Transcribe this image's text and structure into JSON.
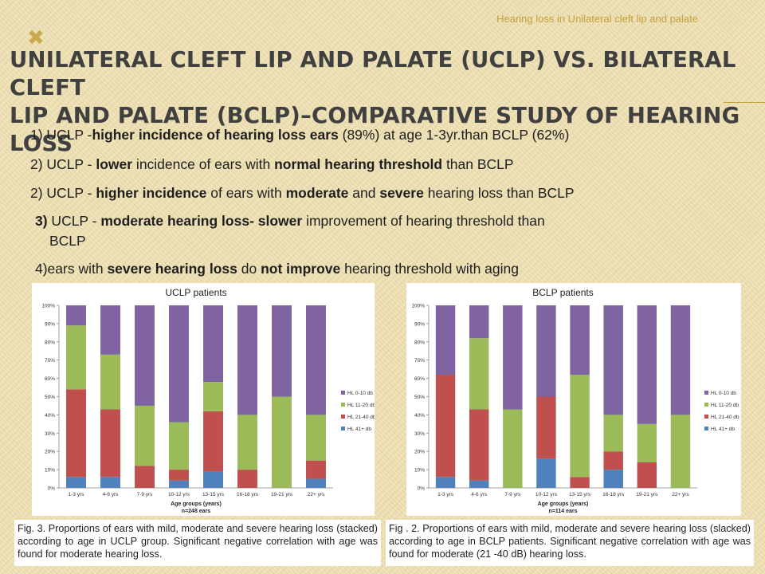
{
  "header_note": "Hearing loss in Unilateral cleft lip and palate",
  "deco_icon": "x-mark-icon",
  "title_line1": "Unilateral cleft lip and palate (UCLP)  vs. Bilateral cleft",
  "title_line2": "lip and palate (BCLP)–comparative study of hearing loss",
  "points": [
    {
      "segments": [
        {
          "t": "1) UCLP -"
        },
        {
          "t": "higher incidence of  hearing loss ears",
          "b": true
        },
        {
          "t": " (89%) at age 1-3yr.than BCLP (62%)"
        }
      ]
    },
    {
      "segments": [
        {
          "t": "2) UCLP - "
        },
        {
          "t": "lower",
          "b": true
        },
        {
          "t": " incidence of ears with "
        },
        {
          "t": "normal hearing threshold",
          "b": true
        },
        {
          "t": "  than BCLP"
        }
      ]
    },
    {
      "segments": [
        {
          "t": "2) UCLP - "
        },
        {
          "t": "higher incidence",
          "b": true
        },
        {
          "t": " of ears with "
        },
        {
          "t": "moderate",
          "b": true
        },
        {
          "t": " and "
        },
        {
          "t": "severe",
          "b": true
        },
        {
          "t": " hearing loss than BCLP"
        }
      ]
    },
    {
      "segments": [
        {
          "t": "3)",
          "b": true
        },
        {
          "t": " UCLP - "
        },
        {
          "t": "moderate hearing loss- slower",
          "b": true
        },
        {
          "t": "  improvement of hearing threshold than"
        }
      ]
    },
    {
      "segments": [
        {
          "t": "BCLP"
        }
      ]
    },
    {
      "segments": [
        {
          "t": "4)ears with "
        },
        {
          "t": "severe hearing loss",
          "b": true
        },
        {
          "t": " do "
        },
        {
          "t": "not improve",
          "b": true
        },
        {
          "t": " hearing threshold with aging"
        }
      ]
    }
  ],
  "chart_data": [
    {
      "type": "bar",
      "stacked": true,
      "title": "UCLP patients",
      "xlabel": "Age groups (years)",
      "xlabel_note": "n=248 ears",
      "ylim": [
        0,
        100
      ],
      "y_ticks": [
        "0%",
        "10%",
        "20%",
        "30%",
        "40%",
        "50%",
        "60%",
        "70%",
        "80%",
        "90%",
        "100%"
      ],
      "categories": [
        "1-3 yrs",
        "4-6 yrs",
        "7-9 yrs",
        "10-12 yrs",
        "13-15 yrs",
        "16-18 yrs",
        "19-21 yrs",
        "22+ yrs"
      ],
      "legend_position": "right",
      "series": [
        {
          "name": "HL 41+ db",
          "color": "#4f81bd",
          "values": [
            6,
            6,
            0,
            4,
            9,
            0,
            0,
            5
          ]
        },
        {
          "name": "HL 21-40 db",
          "color": "#c0504d",
          "values": [
            48,
            37,
            12,
            6,
            33,
            10,
            0,
            10
          ]
        },
        {
          "name": "HL 11-20 db",
          "color": "#9bbb59",
          "values": [
            35,
            30,
            33,
            26,
            16,
            30,
            50,
            25
          ]
        },
        {
          "name": "HL 0-10 db",
          "color": "#8064a2",
          "values": [
            11,
            27,
            55,
            64,
            42,
            60,
            50,
            60
          ]
        }
      ],
      "caption": "Fig. 3. Proportions of ears with mild, moderate and severe hearing loss (stacked) according to age in UCLP group. Significant negative correlation with age was found for moderate hearing loss."
    },
    {
      "type": "bar",
      "stacked": true,
      "title": "BCLP patients",
      "xlabel": "Age groups (years)",
      "xlabel_note": "n=114 ears",
      "ylim": [
        0,
        100
      ],
      "y_ticks": [
        "0%",
        "10%",
        "20%",
        "30%",
        "40%",
        "50%",
        "60%",
        "70%",
        "80%",
        "90%",
        "100%"
      ],
      "categories": [
        "1-3 yrs",
        "4-6 yrs",
        "7-9 yrs",
        "10-12 yrs",
        "13-15 yrs",
        "16-18 yrs",
        "19-21 yrs",
        "22+ yrs"
      ],
      "legend_position": "right",
      "series": [
        {
          "name": "HL 41+ db",
          "color": "#4f81bd",
          "values": [
            6,
            4,
            0,
            16,
            0,
            10,
            0,
            0
          ]
        },
        {
          "name": "HL 21-40 db",
          "color": "#c0504d",
          "values": [
            56,
            39,
            0,
            34,
            6,
            10,
            14,
            0
          ]
        },
        {
          "name": "HL 11-20 db",
          "color": "#9bbb59",
          "values": [
            0,
            39,
            43,
            0,
            56,
            20,
            21,
            40
          ]
        },
        {
          "name": "HL 0-10 db",
          "color": "#8064a2",
          "values": [
            38,
            18,
            57,
            50,
            38,
            60,
            65,
            60
          ]
        }
      ],
      "caption": "Fig . 2. Proportions of ears with mild, moderate and severe hearing loss (slacked) according to age in BCLP patients. Significant negative correlation with age was found for moderate (21 -40 dB) hearing loss."
    }
  ]
}
